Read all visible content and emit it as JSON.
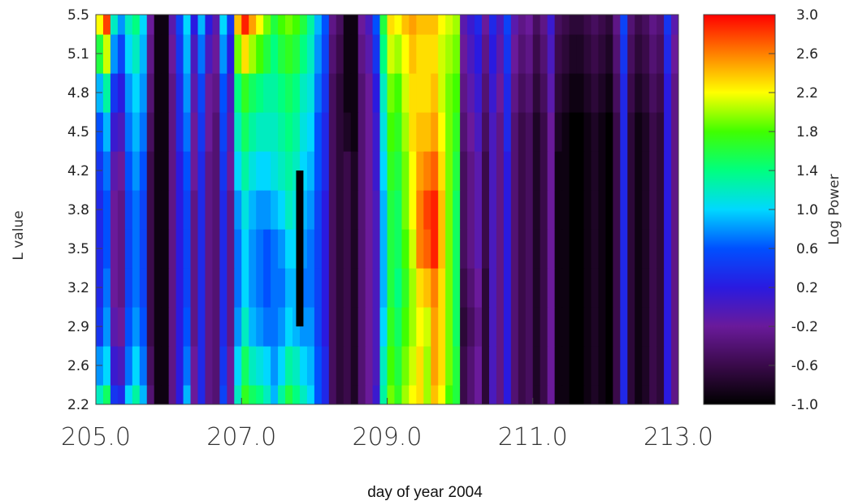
{
  "chart_data": {
    "type": "heatmap",
    "title": "",
    "xlabel": "day of year 2004",
    "ylabel": "L value",
    "colorbar_label": "Log  Power",
    "xlim": [
      205.0,
      213.0
    ],
    "ylim": [
      2.2,
      5.5
    ],
    "x_ticks": [
      "205.0",
      "207.0",
      "209.0",
      "211.0",
      "213.0"
    ],
    "y_ticks": [
      "2.2",
      "2.6",
      "2.9",
      "3.2",
      "3.5",
      "3.8",
      "4.2",
      "4.5",
      "4.8",
      "5.1",
      "5.5"
    ],
    "colorbar_range": [
      -1.0,
      3.0
    ],
    "colorbar_ticks": [
      "-1.0",
      "-0.6",
      "-0.2",
      "0.2",
      "0.6",
      "1.0",
      "1.4",
      "1.8",
      "2.2",
      "2.6",
      "3.0"
    ],
    "colormap": [
      "#000000",
      "#3a0a4a",
      "#6a1a9a",
      "#2a1ae0",
      "#0050ff",
      "#00d8ff",
      "#00ff80",
      "#40ff00",
      "#ffff00",
      "#ff8000",
      "#ff0000"
    ],
    "data_gap": {
      "x": [
        207.75,
        207.85
      ],
      "y": [
        2.9,
        4.2
      ]
    },
    "column_days": [
      205.0,
      205.1,
      205.2,
      205.3,
      205.4,
      205.5,
      205.6,
      205.7,
      205.8,
      205.9,
      206.0,
      206.1,
      206.2,
      206.3,
      206.4,
      206.5,
      206.6,
      206.7,
      206.8,
      206.9,
      207.0,
      207.1,
      207.2,
      207.3,
      207.4,
      207.5,
      207.6,
      207.7,
      207.8,
      207.9,
      208.0,
      208.1,
      208.2,
      208.3,
      208.4,
      208.5,
      208.6,
      208.7,
      208.8,
      208.9,
      209.0,
      209.1,
      209.2,
      209.3,
      209.4,
      209.5,
      209.6,
      209.7,
      209.8,
      209.9,
      210.0,
      210.1,
      210.2,
      210.3,
      210.4,
      210.5,
      210.6,
      210.7,
      210.8,
      210.9,
      211.0,
      211.1,
      211.2,
      211.3,
      211.4,
      211.5,
      211.6,
      211.7,
      211.8,
      211.9,
      212.0,
      212.1,
      212.2,
      212.3,
      212.4,
      212.5,
      212.6,
      212.7,
      212.8,
      212.9
    ],
    "row_L": [
      2.2,
      2.6,
      2.9,
      3.2,
      3.5,
      3.8,
      4.2,
      4.5,
      4.8,
      5.1,
      5.5
    ],
    "log_power": [
      [
        1.2,
        1.5,
        0.4,
        0.3,
        1.0,
        1.3,
        0.9,
        -0.4,
        -0.9,
        -0.9,
        -0.3,
        0.2,
        0.9,
        -0.2,
        0.3,
        -0.3,
        -0.4,
        0.5,
        -0.2,
        1.2,
        1.7,
        1.5,
        1.4,
        1.2,
        0.9,
        1.3,
        1.6,
        1.4,
        1.2,
        1.0,
        0.6,
        0.3,
        -0.5,
        -0.7,
        -0.6,
        -0.8,
        -0.4,
        -0.2,
        0.1,
        1.3,
        1.9,
        1.7,
        2.0,
        2.2,
        2.3,
        2.0,
        2.4,
        2.2,
        1.8,
        1.6,
        -0.6,
        -0.4,
        -0.2,
        -0.7,
        0.0,
        -0.3,
        0.2,
        -0.4,
        -0.6,
        -0.5,
        -0.8,
        -0.6,
        -0.2,
        -0.9,
        -0.9,
        -1.0,
        -1.0,
        -0.9,
        -0.8,
        -0.9,
        -1.0,
        -0.6,
        0.3,
        -0.7,
        -0.9,
        -0.8,
        -0.6,
        -0.7,
        0.2,
        -0.3
      ],
      [
        0.8,
        1.0,
        0.1,
        0.0,
        0.7,
        1.0,
        0.7,
        -0.5,
        -0.9,
        -0.9,
        -0.3,
        0.2,
        0.7,
        -0.2,
        0.3,
        -0.3,
        -0.4,
        0.4,
        -0.2,
        1.0,
        1.5,
        1.2,
        1.1,
        1.0,
        0.8,
        1.0,
        1.3,
        1.2,
        1.0,
        0.9,
        0.6,
        0.3,
        -0.5,
        -0.7,
        -0.6,
        -0.8,
        -0.4,
        -0.2,
        0.0,
        1.2,
        1.8,
        1.6,
        1.9,
        2.1,
        2.3,
        2.0,
        2.5,
        2.3,
        1.9,
        1.6,
        -0.6,
        -0.4,
        -0.2,
        -0.7,
        0.0,
        -0.3,
        0.2,
        -0.4,
        -0.6,
        -0.5,
        -0.8,
        -0.6,
        -0.2,
        -0.9,
        -0.9,
        -1.0,
        -1.0,
        -0.9,
        -0.8,
        -0.9,
        -1.0,
        -0.6,
        0.3,
        -0.7,
        -0.9,
        -0.8,
        -0.6,
        -0.7,
        0.2,
        -0.3
      ],
      [
        0.4,
        0.8,
        -0.1,
        -0.2,
        0.6,
        0.8,
        0.6,
        -0.6,
        -0.9,
        -0.9,
        -0.3,
        0.2,
        0.6,
        -0.3,
        0.3,
        -0.3,
        -0.4,
        0.3,
        -0.3,
        0.8,
        1.2,
        0.9,
        0.8,
        0.7,
        0.7,
        0.8,
        1.0,
        0.9,
        0.8,
        0.8,
        0.5,
        0.2,
        -0.5,
        -0.7,
        -0.6,
        -0.8,
        -0.4,
        -0.2,
        0.0,
        1.0,
        1.7,
        1.5,
        1.8,
        2.0,
        2.2,
        2.1,
        2.5,
        2.3,
        1.9,
        1.5,
        -0.7,
        -0.5,
        -0.3,
        -0.7,
        0.0,
        -0.3,
        0.2,
        -0.4,
        -0.6,
        -0.5,
        -0.8,
        -0.6,
        -0.2,
        -0.9,
        -0.9,
        -1.0,
        -1.0,
        -0.9,
        -0.8,
        -0.9,
        -1.0,
        -0.6,
        0.3,
        -0.7,
        -0.9,
        -0.8,
        -0.6,
        -0.7,
        0.2,
        -0.3
      ],
      [
        0.3,
        0.7,
        -0.2,
        -0.3,
        0.5,
        0.7,
        0.5,
        -0.6,
        -0.9,
        -0.9,
        -0.3,
        0.2,
        0.5,
        -0.3,
        0.3,
        -0.3,
        -0.4,
        0.3,
        -0.3,
        0.7,
        1.0,
        0.8,
        0.7,
        0.6,
        0.7,
        0.7,
        0.9,
        0.9,
        0.7,
        0.7,
        0.5,
        0.2,
        -0.5,
        -0.7,
        -0.6,
        -0.8,
        -0.4,
        -0.2,
        0.0,
        0.9,
        1.6,
        1.4,
        1.7,
        2.0,
        2.3,
        2.4,
        2.6,
        2.3,
        1.9,
        1.5,
        -0.6,
        -0.4,
        -0.2,
        -0.7,
        0.0,
        -0.3,
        0.2,
        -0.4,
        -0.6,
        -0.5,
        -0.8,
        -0.6,
        -0.2,
        -0.9,
        -0.9,
        -1.0,
        -1.0,
        -0.9,
        -0.8,
        -0.9,
        -1.0,
        -0.6,
        0.3,
        -0.7,
        -0.9,
        -0.8,
        -0.6,
        -0.7,
        0.2,
        -0.3
      ],
      [
        0.3,
        0.6,
        -0.2,
        -0.3,
        0.5,
        0.7,
        0.5,
        -0.6,
        -0.9,
        -0.9,
        -0.3,
        0.2,
        0.5,
        -0.3,
        0.3,
        -0.3,
        -0.4,
        0.3,
        -0.3,
        0.7,
        1.0,
        0.8,
        0.7,
        0.6,
        0.7,
        0.8,
        1.0,
        1.0,
        0.8,
        0.7,
        0.5,
        0.2,
        -0.5,
        -0.7,
        -0.6,
        -0.8,
        -0.4,
        -0.2,
        0.0,
        0.9,
        1.6,
        1.5,
        1.8,
        2.1,
        2.6,
        2.7,
        2.9,
        2.4,
        1.9,
        1.5,
        -0.5,
        -0.3,
        -0.1,
        -0.6,
        0.0,
        -0.3,
        0.2,
        -0.4,
        -0.6,
        -0.5,
        -0.8,
        -0.6,
        -0.2,
        -0.9,
        -0.9,
        -1.0,
        -1.0,
        -0.9,
        -0.8,
        -0.9,
        -1.0,
        -0.6,
        0.3,
        -0.7,
        -0.9,
        -0.8,
        -0.6,
        -0.7,
        0.2,
        -0.3
      ],
      [
        0.3,
        0.6,
        -0.2,
        -0.3,
        0.5,
        0.7,
        0.5,
        -0.6,
        -0.9,
        -0.9,
        -0.3,
        0.2,
        0.5,
        -0.3,
        0.3,
        -0.3,
        -0.4,
        0.3,
        -0.3,
        0.8,
        1.1,
        0.9,
        0.8,
        0.8,
        0.9,
        1.0,
        1.2,
        1.1,
        0.9,
        0.8,
        0.5,
        0.2,
        -0.5,
        -0.7,
        -0.6,
        -0.8,
        -0.4,
        -0.2,
        0.0,
        0.9,
        1.6,
        1.5,
        1.9,
        2.2,
        2.6,
        2.8,
        2.9,
        2.4,
        1.9,
        1.5,
        -0.5,
        -0.3,
        -0.1,
        -0.6,
        0.0,
        -0.3,
        0.2,
        -0.4,
        -0.6,
        -0.5,
        -0.8,
        -0.6,
        -0.2,
        -0.9,
        -0.9,
        -1.0,
        -1.0,
        -0.9,
        -0.8,
        -0.9,
        -1.0,
        -0.6,
        0.3,
        -0.7,
        -0.9,
        -0.8,
        -0.6,
        -0.7,
        0.2,
        -0.3
      ],
      [
        0.4,
        0.7,
        -0.1,
        -0.2,
        0.6,
        0.8,
        0.6,
        -0.6,
        -0.9,
        -0.9,
        -0.3,
        0.2,
        0.6,
        -0.2,
        0.3,
        -0.3,
        -0.4,
        0.4,
        -0.2,
        1.0,
        1.3,
        1.1,
        1.0,
        1.0,
        1.1,
        1.2,
        1.3,
        1.2,
        1.0,
        0.9,
        0.6,
        0.3,
        -0.5,
        -0.7,
        -0.6,
        -0.8,
        -0.4,
        -0.2,
        0.1,
        1.0,
        1.7,
        1.6,
        1.9,
        2.2,
        2.5,
        2.6,
        2.7,
        2.3,
        1.9,
        1.6,
        -0.5,
        -0.3,
        -0.1,
        -0.6,
        0.0,
        -0.3,
        0.2,
        -0.4,
        -0.6,
        -0.5,
        -0.8,
        -0.6,
        -0.2,
        -0.9,
        -0.9,
        -1.0,
        -1.0,
        -0.9,
        -0.8,
        -0.9,
        -1.0,
        -0.6,
        0.3,
        -0.7,
        -0.9,
        -0.8,
        -0.6,
        -0.7,
        0.2,
        -0.3
      ],
      [
        0.6,
        0.9,
        0.1,
        0.0,
        0.7,
        0.9,
        0.7,
        -0.5,
        -0.9,
        -0.9,
        -0.3,
        0.3,
        0.7,
        -0.2,
        0.4,
        -0.2,
        -0.4,
        0.5,
        -0.1,
        1.2,
        1.5,
        1.3,
        1.2,
        1.2,
        1.2,
        1.3,
        1.4,
        1.3,
        1.1,
        1.0,
        0.6,
        0.3,
        -0.5,
        -0.7,
        -0.8,
        -0.9,
        -0.4,
        -0.2,
        0.1,
        1.1,
        1.8,
        1.7,
        2.0,
        2.3,
        2.4,
        2.4,
        2.5,
        2.2,
        1.9,
        1.7,
        -0.4,
        -0.2,
        0.0,
        -0.5,
        0.0,
        -0.3,
        0.3,
        -0.4,
        -0.6,
        -0.5,
        -0.8,
        -0.6,
        -0.2,
        -0.8,
        -0.9,
        -1.0,
        -1.0,
        -0.9,
        -0.8,
        -0.9,
        -1.0,
        -0.6,
        0.3,
        -0.7,
        -0.9,
        -0.8,
        -0.6,
        -0.7,
        0.2,
        -0.3
      ],
      [
        0.9,
        1.3,
        0.4,
        0.2,
        0.8,
        1.0,
        0.8,
        -0.4,
        -0.9,
        -0.9,
        -0.3,
        0.3,
        0.8,
        -0.1,
        0.5,
        -0.2,
        -0.3,
        0.6,
        0.0,
        1.4,
        1.7,
        1.5,
        1.4,
        1.3,
        1.3,
        1.4,
        1.5,
        1.4,
        1.2,
        1.1,
        0.7,
        0.4,
        -0.5,
        -0.7,
        -0.9,
        -0.9,
        -0.4,
        -0.2,
        0.2,
        1.2,
        1.9,
        1.8,
        2.1,
        2.3,
        2.3,
        2.3,
        2.4,
        2.1,
        1.9,
        1.8,
        -0.3,
        -0.1,
        0.1,
        -0.4,
        0.1,
        -0.2,
        0.3,
        -0.3,
        -0.5,
        -0.4,
        -0.7,
        -0.5,
        -0.1,
        -0.7,
        -0.8,
        -0.9,
        -0.9,
        -0.8,
        -0.7,
        -0.8,
        -0.9,
        -0.5,
        0.3,
        -0.6,
        -0.8,
        -0.7,
        -0.5,
        -0.6,
        0.2,
        -0.3
      ],
      [
        1.6,
        2.1,
        0.8,
        0.5,
        1.0,
        1.2,
        0.9,
        -0.3,
        -0.9,
        -0.9,
        -0.2,
        0.4,
        0.9,
        0.0,
        0.7,
        0.0,
        -0.2,
        0.8,
        0.2,
        1.9,
        2.3,
        2.0,
        1.8,
        1.6,
        1.4,
        1.6,
        1.7,
        1.6,
        1.4,
        1.2,
        0.8,
        0.5,
        -0.4,
        -0.6,
        -0.9,
        -0.9,
        -0.3,
        -0.1,
        0.4,
        1.4,
        2.1,
        2.0,
        2.2,
        2.4,
        2.3,
        2.3,
        2.3,
        2.1,
        2.0,
        1.9,
        -0.2,
        0.0,
        0.2,
        -0.3,
        0.2,
        -0.1,
        0.4,
        -0.2,
        -0.4,
        -0.3,
        -0.6,
        -0.4,
        0.0,
        -0.6,
        -0.7,
        -0.8,
        -0.8,
        -0.7,
        -0.6,
        -0.7,
        -0.8,
        -0.4,
        0.4,
        -0.5,
        -0.7,
        -0.6,
        -0.4,
        -0.5,
        0.3,
        -0.2
      ],
      [
        2.2,
        2.8,
        1.2,
        0.8,
        1.2,
        1.4,
        1.0,
        -0.2,
        -0.9,
        -0.9,
        -0.1,
        0.5,
        1.0,
        0.2,
        0.9,
        0.2,
        -0.1,
        1.0,
        0.4,
        2.4,
        2.9,
        2.5,
        2.2,
        1.9,
        1.6,
        1.8,
        1.9,
        1.8,
        1.6,
        1.3,
        0.9,
        0.6,
        -0.3,
        -0.5,
        -0.9,
        -0.9,
        -0.2,
        0.0,
        0.6,
        1.6,
        2.3,
        2.2,
        2.4,
        2.5,
        2.4,
        2.4,
        2.4,
        2.2,
        2.1,
        2.0,
        -0.1,
        0.1,
        0.3,
        -0.2,
        0.3,
        0.0,
        0.5,
        -0.1,
        -0.3,
        -0.2,
        -0.5,
        -0.3,
        0.1,
        -0.5,
        -0.6,
        -0.7,
        -0.7,
        -0.6,
        -0.5,
        -0.6,
        -0.7,
        -0.3,
        0.5,
        -0.4,
        -0.6,
        -0.5,
        -0.3,
        -0.4,
        0.4,
        -0.1
      ]
    ]
  }
}
